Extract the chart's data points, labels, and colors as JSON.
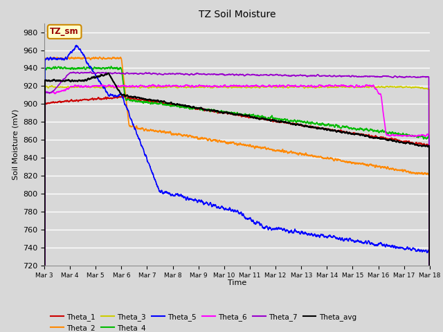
{
  "title": "TZ Soil Moisture",
  "xlabel": "Time",
  "ylabel": "Soil Moisture (mV)",
  "ylim": [
    720,
    990
  ],
  "yticks": [
    720,
    740,
    760,
    780,
    800,
    820,
    840,
    860,
    880,
    900,
    920,
    940,
    960,
    980
  ],
  "background_color": "#d8d8d8",
  "plot_bg_color": "#d8d8d8",
  "grid_color": "#ffffff",
  "annotation_text": "TZ_sm",
  "annotation_bg": "#ffffcc",
  "annotation_border": "#cc8800",
  "annotation_text_color": "#990000",
  "series": {
    "Theta_1": {
      "color": "#cc0000",
      "lw": 1.2
    },
    "Theta_2": {
      "color": "#ff8800",
      "lw": 1.2
    },
    "Theta_3": {
      "color": "#cccc00",
      "lw": 1.2
    },
    "Theta_4": {
      "color": "#00bb00",
      "lw": 1.2
    },
    "Theta_5": {
      "color": "#0000ff",
      "lw": 1.2
    },
    "Theta_6": {
      "color": "#ff00ff",
      "lw": 1.2
    },
    "Theta_7": {
      "color": "#9900cc",
      "lw": 1.2
    },
    "Theta_avg": {
      "color": "#000000",
      "lw": 1.5
    }
  },
  "xtick_labels": [
    "Mar 3",
    "Mar 4",
    "Mar 5",
    "Mar 6",
    "Mar 7",
    "Mar 8",
    "Mar 9",
    "Mar 10",
    "Mar 11",
    "Mar 12",
    "Mar 13",
    "Mar 14",
    "Mar 15",
    "Mar 16",
    "Mar 17",
    "Mar 18"
  ],
  "num_days": 15
}
